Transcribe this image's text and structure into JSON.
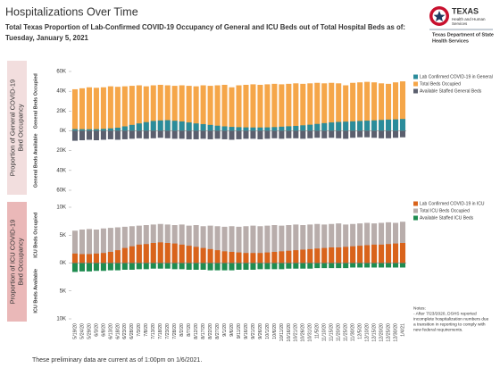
{
  "header": {
    "title": "Hospitalizations Over Time",
    "subtitle": [
      "Total Texas Proportion of Lab-Confirmed COVID-19 Occupancy of General and ICU Beds out of Total Hospital Beds as of:",
      "Tuesday, January 5, 2021"
    ]
  },
  "logo": {
    "lines": [
      "TEXAS",
      "Health and Human",
      "Services"
    ],
    "agency": [
      "Texas Department of State",
      "Health Services"
    ]
  },
  "chart_data": [
    {
      "type": "bar",
      "side_label": [
        "Proportion of General COVID-19",
        "Bed Occupancy"
      ],
      "y_label_top": "General Beds Occupied",
      "y_label_bottom": "General Beds Available",
      "ylim": [
        -60000,
        60000
      ],
      "yticks": [
        {
          "value": 60000,
          "label": "60K"
        },
        {
          "value": 40000,
          "label": "40K"
        },
        {
          "value": 20000,
          "label": "20K"
        },
        {
          "value": 0,
          "label": "0K"
        },
        {
          "value": -20000,
          "label": "20K"
        },
        {
          "value": -40000,
          "label": "40K"
        },
        {
          "value": -60000,
          "label": "60K"
        }
      ],
      "series": [
        {
          "name": "Lab Confirmed COVID-19 in General",
          "color": "#2b8c9b",
          "values": [
            1800,
            1700,
            1600,
            1700,
            2000,
            2500,
            3200,
            4500,
            6000,
            7500,
            8800,
            10000,
            10500,
            10800,
            10200,
            9500,
            8500,
            7500,
            6800,
            6000,
            5200,
            4500,
            4000,
            3700,
            3500,
            3400,
            3400,
            3500,
            3800,
            4200,
            4600,
            5000,
            5600,
            6200,
            7000,
            7800,
            8500,
            9000,
            9300,
            9600,
            10000,
            10300,
            10600,
            11000,
            11400,
            11600,
            12000
          ]
        },
        {
          "name": "Total Beds Occupied",
          "color": "#f5a649",
          "values": [
            42000,
            43000,
            44000,
            43500,
            44000,
            45000,
            44500,
            45000,
            45500,
            46000,
            45000,
            46000,
            46500,
            46000,
            45500,
            46000,
            45500,
            45000,
            46000,
            45500,
            46000,
            46500,
            44000,
            46000,
            46500,
            47000,
            46500,
            47000,
            47500,
            47000,
            47500,
            48000,
            47500,
            48000,
            48500,
            48000,
            48500,
            48000,
            46000,
            48500,
            49000,
            49500,
            49000,
            48000,
            47500,
            49000,
            50000
          ]
        },
        {
          "name": "Available Staffed General Beds",
          "color": "#5b5f6e",
          "values": [
            -10000,
            -9500,
            -9000,
            -9500,
            -9000,
            -8500,
            -9000,
            -8500,
            -8000,
            -7500,
            -8000,
            -7500,
            -7000,
            -7500,
            -8000,
            -8000,
            -8500,
            -8500,
            -8000,
            -8500,
            -8000,
            -8500,
            -9000,
            -8500,
            -8000,
            -8000,
            -8500,
            -8000,
            -7500,
            -8000,
            -7500,
            -7500,
            -8000,
            -7500,
            -7000,
            -7500,
            -7000,
            -7500,
            -8000,
            -7000,
            -6500,
            -6500,
            -7000,
            -7500,
            -7500,
            -7000,
            -6500
          ]
        }
      ]
    },
    {
      "type": "bar",
      "side_label": [
        "Proportion of ICU COVID-19",
        "Bed Occupancy"
      ],
      "y_label_top": "ICU Beds Occupied",
      "y_label_bottom": "ICU Beds Available",
      "ylim": [
        -10000,
        10000
      ],
      "yticks": [
        {
          "value": 10000,
          "label": "10K"
        },
        {
          "value": 5000,
          "label": "5K"
        },
        {
          "value": 0,
          "label": "0K"
        },
        {
          "value": -5000,
          "label": "5K"
        },
        {
          "value": -10000,
          "label": "10K"
        }
      ],
      "categories": [
        "5/19/20",
        "5/24/20",
        "5/29/20",
        "6/3/20",
        "6/8/20",
        "6/13/20",
        "6/18/20",
        "6/23/20",
        "6/28/20",
        "7/3/20",
        "7/8/20",
        "7/13/20",
        "7/18/20",
        "7/23/20",
        "7/28/20",
        "8/2/20",
        "8/7/20",
        "8/12/20",
        "8/17/20",
        "8/22/20",
        "8/27/20",
        "9/1/20",
        "9/6/20",
        "9/11/20",
        "9/16/20",
        "9/21/20",
        "9/26/20",
        "10/1/20",
        "10/6/20",
        "10/11/20",
        "10/16/20",
        "10/21/20",
        "10/26/20",
        "10/31/20",
        "11/5/20",
        "11/10/20",
        "11/15/20",
        "11/20/20",
        "11/25/20",
        "11/30/20",
        "12/5/20",
        "12/10/20",
        "12/15/20",
        "12/20/20",
        "12/25/20",
        "12/30/20",
        "1/4/21"
      ],
      "series": [
        {
          "name": "Lab Confirmed COVID-19 in ICU",
          "color": "#d9631b",
          "values": [
            1700,
            1600,
            1600,
            1700,
            1800,
            2000,
            2300,
            2700,
            3000,
            3300,
            3400,
            3600,
            3700,
            3600,
            3500,
            3300,
            3100,
            2900,
            2700,
            2500,
            2300,
            2100,
            2000,
            1900,
            1800,
            1800,
            1800,
            1900,
            2000,
            2100,
            2200,
            2300,
            2400,
            2500,
            2600,
            2700,
            2800,
            2800,
            2900,
            3000,
            3100,
            3200,
            3300,
            3300,
            3400,
            3500,
            3600
          ]
        },
        {
          "name": "Total ICU Beds Occupied",
          "color": "#b8adab",
          "values": [
            5800,
            6000,
            6100,
            6000,
            6200,
            6300,
            6400,
            6500,
            6600,
            6700,
            6800,
            6900,
            7000,
            6900,
            6800,
            6900,
            6700,
            6800,
            6600,
            6700,
            6600,
            6500,
            6600,
            6500,
            6600,
            6700,
            6600,
            6700,
            6800,
            6700,
            6800,
            6900,
            6800,
            6900,
            7000,
            6900,
            7000,
            7100,
            6900,
            7000,
            7100,
            7200,
            7100,
            7200,
            7300,
            7200,
            7400
          ]
        },
        {
          "name": "Available Staffed ICU Beds",
          "color": "#1f8c50",
          "values": [
            -1600,
            -1500,
            -1500,
            -1400,
            -1400,
            -1300,
            -1300,
            -1200,
            -1200,
            -1100,
            -1100,
            -1000,
            -1000,
            -1000,
            -1100,
            -1100,
            -1200,
            -1200,
            -1200,
            -1300,
            -1300,
            -1300,
            -1300,
            -1200,
            -1200,
            -1200,
            -1100,
            -1100,
            -1100,
            -1100,
            -1000,
            -1000,
            -1000,
            -1000,
            -900,
            -900,
            -900,
            -900,
            -900,
            -800,
            -800,
            -800,
            -800,
            -800,
            -800,
            -800,
            -800
          ]
        }
      ]
    }
  ],
  "notes": [
    "Notes:",
    "- After 7/23/2020, DSHS reported",
    "incomplete hospitalization numbers due",
    "a transition in reporting to comply with",
    "new federal requirements."
  ],
  "footer": "These preliminary data are current as of 1:00pm on 1/6/2021."
}
